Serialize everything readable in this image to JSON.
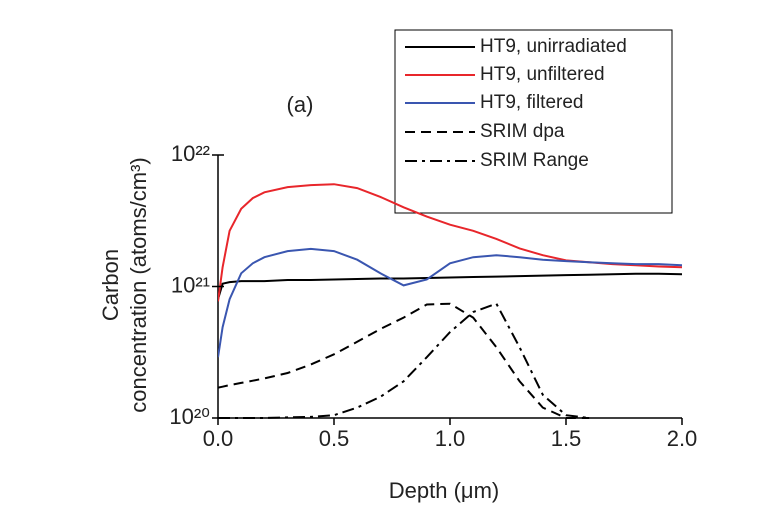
{
  "chart_data": {
    "type": "line",
    "title": "(a)",
    "xlabel": "Depth (μm)",
    "ylabel": [
      "Carbon",
      "concentration (atoms/cm³)"
    ],
    "log_y": true,
    "legend": "top-right",
    "xlim": [
      0,
      2
    ],
    "ylim": [
      1e+20,
      1e+22
    ],
    "xticks": [
      {
        "value": 0,
        "label": "0.0"
      },
      {
        "value": 0.5,
        "label": "0.5"
      },
      {
        "value": 1,
        "label": "1.0"
      },
      {
        "value": 1.5,
        "label": "1.5"
      },
      {
        "value": 2,
        "label": "2.0"
      }
    ],
    "yticks": [
      {
        "value": 1e+20,
        "label": "10²⁰"
      },
      {
        "value": 1e+21,
        "label": "10²¹"
      },
      {
        "value": 1e+22,
        "label": "10²²"
      }
    ],
    "x": [
      0,
      0.02,
      0.05,
      0.1,
      0.15,
      0.2,
      0.3,
      0.4,
      0.5,
      0.6,
      0.7,
      0.8,
      0.9,
      1.0,
      1.1,
      1.2,
      1.3,
      1.4,
      1.5,
      1.6,
      1.7,
      1.8,
      1.9,
      2.0
    ],
    "series": [
      {
        "name": "HT9, unirradiated",
        "color": "#000000",
        "dash": "solid",
        "values": [
          8e+20,
          1.05e+21,
          1.08e+21,
          1.1e+21,
          1.1e+21,
          1.1e+21,
          1.12e+21,
          1.12e+21,
          1.13e+21,
          1.14e+21,
          1.15e+21,
          1.15e+21,
          1.16e+21,
          1.17e+21,
          1.18e+21,
          1.19e+21,
          1.2e+21,
          1.21e+21,
          1.22e+21,
          1.23e+21,
          1.24e+21,
          1.25e+21,
          1.25e+21,
          1.24e+21
        ]
      },
      {
        "name": "HT9, unfiltered",
        "color": "#e8262b",
        "dash": "solid",
        "values": [
          7.7e+20,
          1.4e+21,
          2.65e+21,
          3.9e+21,
          4.7e+21,
          5.2e+21,
          5.7e+21,
          5.9e+21,
          6e+21,
          5.6e+21,
          4.8e+21,
          4e+21,
          3.4e+21,
          2.95e+21,
          2.65e+21,
          2.3e+21,
          1.95e+21,
          1.73e+21,
          1.58e+21,
          1.53e+21,
          1.48e+21,
          1.45e+21,
          1.42e+21,
          1.4e+21
        ]
      },
      {
        "name": "HT9, filtered",
        "color": "#3a56b0",
        "dash": "solid",
        "values": [
          2.9e+20,
          4.9e+20,
          8e+20,
          1.26e+21,
          1.5e+21,
          1.67e+21,
          1.86e+21,
          1.93e+21,
          1.86e+21,
          1.6e+21,
          1.26e+21,
          1.02e+21,
          1.13e+21,
          1.5e+21,
          1.67e+21,
          1.73e+21,
          1.67e+21,
          1.6e+21,
          1.56e+21,
          1.53e+21,
          1.5e+21,
          1.48e+21,
          1.48e+21,
          1.45e+21
        ]
      },
      {
        "name": "SRIM dpa",
        "color": "#000000",
        "dash": "dashed",
        "values": [
          1.7e+20,
          1.73e+20,
          1.78e+20,
          1.85e+20,
          1.92e+20,
          2e+20,
          2.2e+20,
          2.55e+20,
          3.05e+20,
          3.8e+20,
          4.75e+20,
          5.8e+20,
          7.3e+20,
          7.4e+20,
          5.8e+20,
          3.45e+20,
          1.9e+20,
          1.2e+20,
          1e+20,
          1e+20,
          null,
          null,
          null,
          null
        ]
      },
      {
        "name": "SRIM Range",
        "color": "#000000",
        "dash": "dashdot",
        "values": [
          1e+20,
          1e+20,
          1e+20,
          1e+20,
          1e+20,
          1e+20,
          1.01e+20,
          1.02e+20,
          1.05e+20,
          1.2e+20,
          1.45e+20,
          1.9e+20,
          2.9e+20,
          4.5e+20,
          6.4e+20,
          7.4e+20,
          3.45e+20,
          1.5e+20,
          1.05e+20,
          1e+20,
          null,
          null,
          null,
          null
        ]
      }
    ]
  }
}
